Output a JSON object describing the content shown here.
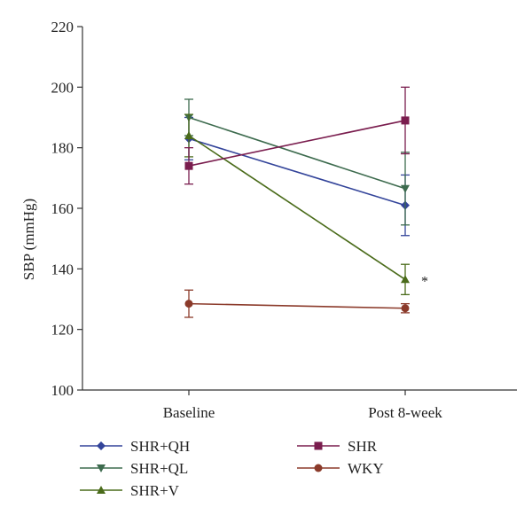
{
  "chart_data": {
    "type": "line",
    "ylabel": "SBP (mmHg)",
    "xlabel": "",
    "categories": [
      "Baseline",
      "Post 8-week"
    ],
    "ylim": [
      100,
      220
    ],
    "yticks": [
      100,
      120,
      140,
      160,
      180,
      200,
      220
    ],
    "grid": false,
    "legend_position": "bottom",
    "series": [
      {
        "name": "SHR+QH",
        "marker": "diamond",
        "color": "#33449a",
        "values": [
          183,
          161
        ],
        "errors": [
          7,
          10
        ]
      },
      {
        "name": "SHR+QL",
        "marker": "triangle-down",
        "color": "#3d6b4e",
        "values": [
          190,
          166.5
        ],
        "errors": [
          6,
          12
        ]
      },
      {
        "name": "SHR+V",
        "marker": "triangle-up",
        "color": "#4a6b1a",
        "values": [
          184,
          136.5
        ],
        "errors": [
          7,
          5
        ]
      },
      {
        "name": "SHR",
        "marker": "square",
        "color": "#7a1d4e",
        "values": [
          174,
          189
        ],
        "errors": [
          6,
          11
        ]
      },
      {
        "name": "WKY",
        "marker": "circle",
        "color": "#8b3a2a",
        "values": [
          128.5,
          127
        ],
        "errors": [
          4.5,
          1.5
        ]
      }
    ],
    "annotations": [
      {
        "text": "*",
        "category": "Post 8-week",
        "y": 136.5
      }
    ]
  }
}
